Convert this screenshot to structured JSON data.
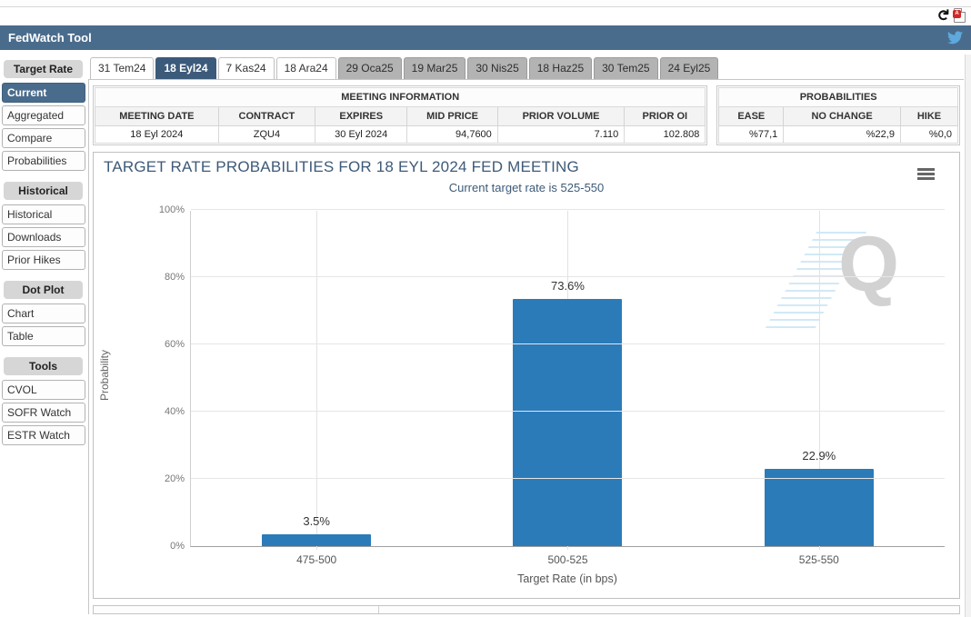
{
  "top_icons": {
    "refresh": "refresh-icon",
    "pdf_export": "pdf-export-icon",
    "pdf_badge": "A"
  },
  "header": {
    "title": "FedWatch Tool",
    "social_icon": "twitter-icon"
  },
  "tabs": [
    {
      "label": "31 Tem24",
      "variant": "white",
      "active": false
    },
    {
      "label": "18 Eyl24",
      "variant": "white",
      "active": true
    },
    {
      "label": "7 Kas24",
      "variant": "white",
      "active": false
    },
    {
      "label": "18 Ara24",
      "variant": "white",
      "active": false
    },
    {
      "label": "29 Oca25",
      "variant": "grey",
      "active": false
    },
    {
      "label": "19 Mar25",
      "variant": "grey",
      "active": false
    },
    {
      "label": "30 Nis25",
      "variant": "grey",
      "active": false
    },
    {
      "label": "18 Haz25",
      "variant": "grey",
      "active": false
    },
    {
      "label": "30 Tem25",
      "variant": "grey",
      "active": false
    },
    {
      "label": "24 Eyl25",
      "variant": "grey",
      "active": false
    }
  ],
  "sidebar": {
    "sections": [
      {
        "title": "Target Rate",
        "items": [
          {
            "label": "Current",
            "selected": true
          },
          {
            "label": "Aggregated",
            "selected": false
          },
          {
            "label": "Compare",
            "selected": false
          },
          {
            "label": "Probabilities",
            "selected": false
          }
        ]
      },
      {
        "title": "Historical",
        "items": [
          {
            "label": "Historical",
            "selected": false
          },
          {
            "label": "Downloads",
            "selected": false
          },
          {
            "label": "Prior Hikes",
            "selected": false
          }
        ]
      },
      {
        "title": "Dot Plot",
        "items": [
          {
            "label": "Chart",
            "selected": false
          },
          {
            "label": "Table",
            "selected": false
          }
        ]
      },
      {
        "title": "Tools",
        "items": [
          {
            "label": "CVOL",
            "selected": false
          },
          {
            "label": "SOFR Watch",
            "selected": false
          },
          {
            "label": "ESTR Watch",
            "selected": false
          }
        ]
      }
    ]
  },
  "meeting_info": {
    "title": "MEETING INFORMATION",
    "columns": [
      "MEETING DATE",
      "CONTRACT",
      "EXPIRES",
      "MID PRICE",
      "PRIOR VOLUME",
      "PRIOR OI"
    ],
    "row": [
      "18 Eyl 2024",
      "ZQU4",
      "30 Eyl 2024",
      "94,7600",
      "7.110",
      "102.808"
    ]
  },
  "probabilities": {
    "title": "PROBABILITIES",
    "columns": [
      "EASE",
      "NO CHANGE",
      "HIKE"
    ],
    "row": [
      "%77,1",
      "%22,9",
      "%0,0"
    ]
  },
  "chart_data": {
    "type": "bar",
    "title": "TARGET RATE PROBABILITIES FOR 18 EYL 2024 FED MEETING",
    "subtitle": "Current target rate is 525-550",
    "xlabel": "Target Rate (in bps)",
    "ylabel": "Probability",
    "categories": [
      "475-500",
      "500-525",
      "525-550"
    ],
    "values": [
      3.5,
      73.6,
      22.9
    ],
    "data_labels": [
      "3.5%",
      "73.6%",
      "22.9%"
    ],
    "ylim": [
      0,
      100
    ],
    "yticks": [
      "0%",
      "20%",
      "40%",
      "60%",
      "80%",
      "100%"
    ],
    "grid": true,
    "legend": "none",
    "bar_color": "#2b7bb9",
    "watermark": "Q",
    "menu_icon": "hamburger-menu-icon"
  }
}
